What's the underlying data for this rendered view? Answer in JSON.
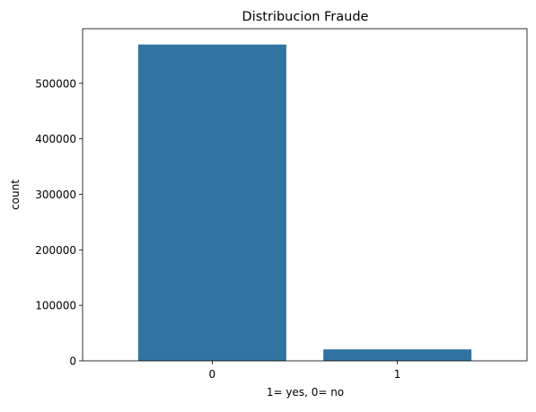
{
  "chart_data": {
    "type": "bar",
    "title": "Distribucion Fraude",
    "xlabel": "1= yes, 0= no",
    "ylabel": "count",
    "categories": [
      "0",
      "1"
    ],
    "values": [
      569877,
      20663
    ],
    "ylim": [
      0,
      598370
    ],
    "yticks": [
      0,
      100000,
      200000,
      300000,
      400000,
      500000
    ],
    "ytick_labels": [
      "0",
      "100000",
      "200000",
      "300000",
      "400000",
      "500000"
    ],
    "grid": false,
    "bar_color": "#3274a1"
  }
}
